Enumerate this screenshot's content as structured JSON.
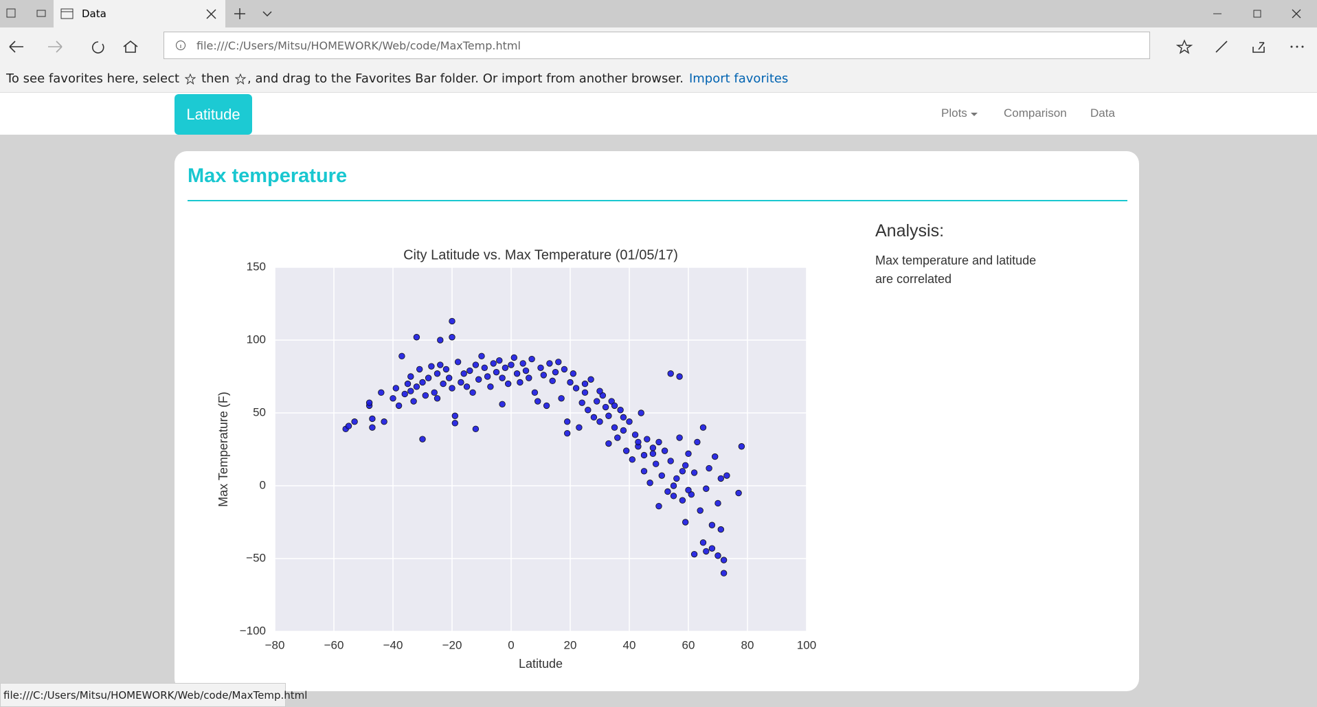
{
  "browser": {
    "tab_title": "Data",
    "address": "file:///C:/Users/Mitsu/HOMEWORK/Web/code/MaxTemp.html",
    "favorites_text_1": "To see favorites here, select",
    "favorites_text_2": "then",
    "favorites_text_3": ", and drag to the Favorites Bar folder. Or import from another browser.",
    "import_link": "Import favorites",
    "status_bar": "file:///C:/Users/Mitsu/HOMEWORK/Web/code/MaxTemp.html"
  },
  "navbar": {
    "brand": "Latitude",
    "links": [
      "Plots",
      "Comparison",
      "Data"
    ]
  },
  "card": {
    "title": "Max temperature",
    "analysis_heading": "Analysis:",
    "analysis_text": "Max temperature and latitude are correlated"
  },
  "chart_data": {
    "type": "scatter",
    "title": "City Latitude vs. Max Temperature (01/05/17)",
    "x_label": "Latitude",
    "y_label": "Max Temperature (F)",
    "color": "#1a1ae0",
    "grid": true,
    "xlim": [
      -80,
      100
    ],
    "ylim": [
      -100,
      150
    ],
    "xticks": [
      {
        "value": -80,
        "label": "−80"
      },
      {
        "value": -60,
        "label": "−60"
      },
      {
        "value": -40,
        "label": "−40"
      },
      {
        "value": -20,
        "label": "−20"
      },
      0,
      20,
      40,
      60,
      80,
      100
    ],
    "yticks": [
      {
        "value": -100,
        "label": "−100"
      },
      {
        "value": -50,
        "label": "−50"
      },
      0,
      50,
      100,
      150
    ],
    "x": [
      -56,
      -55,
      -53,
      -48,
      -48,
      -47,
      -47,
      -44,
      -43,
      -40,
      -39,
      -38,
      -37,
      -36,
      -35,
      -34,
      -34,
      -33,
      -32,
      -32,
      -31,
      -30,
      -30,
      -29,
      -28,
      -27,
      -26,
      -25,
      -25,
      -24,
      -24,
      -23,
      -22,
      -21,
      -20,
      -20,
      -20,
      -19,
      -19,
      -18,
      -17,
      -16,
      -15,
      -14,
      -13,
      -12,
      -12,
      -11,
      -10,
      -9,
      -8,
      -7,
      -6,
      -5,
      -4,
      -3,
      -3,
      -2,
      -1,
      0,
      1,
      2,
      3,
      4,
      5,
      6,
      7,
      8,
      9,
      10,
      11,
      12,
      13,
      14,
      15,
      16,
      17,
      18,
      19,
      19,
      20,
      21,
      22,
      23,
      24,
      25,
      26,
      27,
      28,
      29,
      30,
      31,
      32,
      33,
      33,
      34,
      35,
      36,
      37,
      38,
      39,
      40,
      41,
      42,
      43,
      44,
      45,
      45,
      46,
      47,
      48,
      49,
      50,
      50,
      51,
      52,
      53,
      54,
      54,
      55,
      56,
      57,
      57,
      58,
      59,
      59,
      60,
      61,
      62,
      62,
      63,
      64,
      65,
      65,
      66,
      67,
      68,
      68,
      69,
      70,
      70,
      71,
      71,
      72,
      72,
      73,
      77,
      78,
      66,
      60,
      55,
      58,
      48,
      43,
      38,
      35,
      30,
      25
    ],
    "values": [
      39,
      41,
      44,
      55,
      57,
      46,
      40,
      64,
      44,
      60,
      67,
      55,
      89,
      63,
      70,
      65,
      75,
      58,
      102,
      68,
      80,
      71,
      32,
      62,
      74,
      82,
      64,
      77,
      60,
      100,
      83,
      70,
      80,
      74,
      113,
      102,
      67,
      48,
      43,
      85,
      71,
      77,
      68,
      79,
      64,
      39,
      83,
      73,
      89,
      81,
      75,
      68,
      84,
      78,
      86,
      56,
      74,
      81,
      70,
      83,
      88,
      77,
      71,
      84,
      79,
      74,
      87,
      64,
      58,
      81,
      76,
      55,
      84,
      72,
      78,
      85,
      60,
      80,
      44,
      36,
      71,
      77,
      67,
      40,
      57,
      64,
      52,
      73,
      47,
      58,
      44,
      62,
      54,
      29,
      48,
      58,
      40,
      33,
      52,
      47,
      24,
      44,
      18,
      35,
      27,
      50,
      10,
      21,
      32,
      2,
      26,
      15,
      -14,
      30,
      7,
      24,
      -4,
      17,
      77,
      -7,
      5,
      33,
      75,
      -10,
      14,
      -25,
      22,
      -6,
      -47,
      9,
      30,
      -17,
      40,
      -39,
      -2,
      12,
      -43,
      -27,
      20,
      -48,
      -12,
      -30,
      5,
      -60,
      -51,
      7,
      -5,
      27,
      -45,
      -3,
      0,
      10,
      22,
      30,
      38,
      55,
      65,
      70
    ]
  }
}
